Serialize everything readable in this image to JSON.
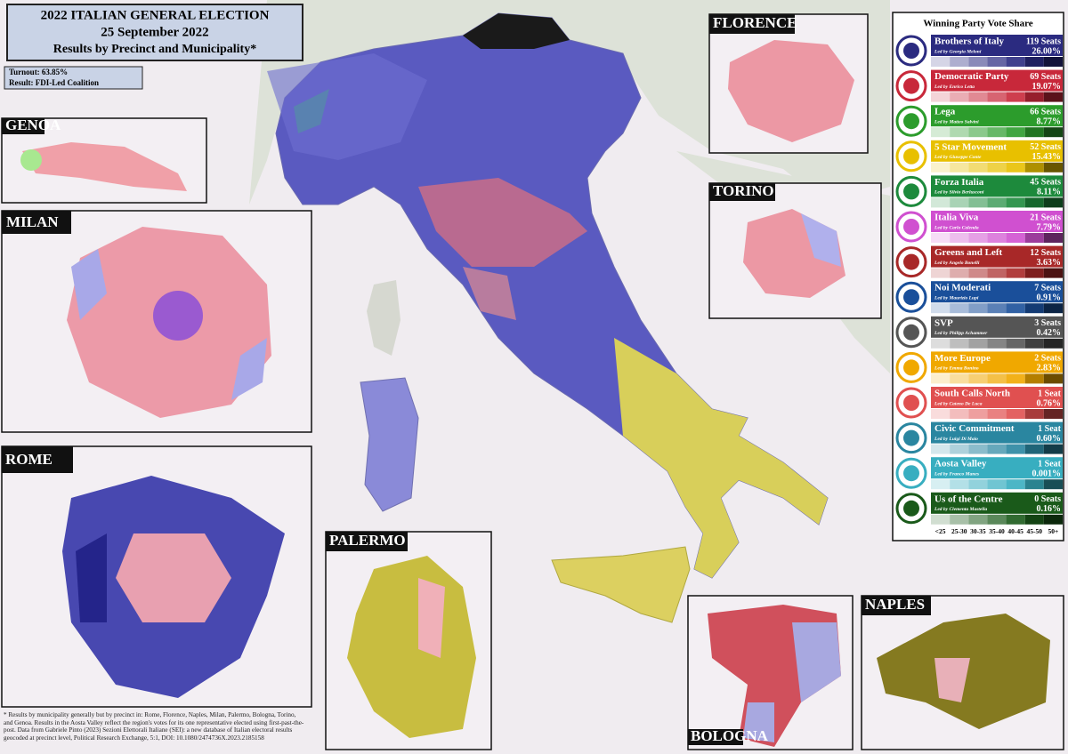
{
  "header": {
    "title": "2022 ITALIAN GENERAL ELECTION",
    "date": "25 September 2022",
    "subtitle": "Results by Precinct and Municipality*"
  },
  "summary": {
    "turnout": "Turnout: 63.85%",
    "result": "Result: FDI-Led Coalition"
  },
  "insets": {
    "genoa": "GENOA",
    "milan": "MILAN",
    "rome": "ROME",
    "palermo": "PALERMO",
    "florence": "FLORENCE",
    "torino": "TORINO",
    "bologna": "BOLOGNA",
    "naples": "NAPLES"
  },
  "legend": {
    "title": "Winning Party Vote Share",
    "parties": [
      {
        "name": "Brothers of Italy",
        "seats": "119 Seats",
        "leader": "Led by Georgia Meloni",
        "share": "26.00%",
        "color": "#2b2b80"
      },
      {
        "name": "Democratic Party",
        "seats": "69 Seats",
        "leader": "Led by Enrico Letta",
        "share": "19.07%",
        "color": "#c8283a"
      },
      {
        "name": "Lega",
        "seats": "66 Seats",
        "leader": "Led by Matteo Salvini",
        "share": "8.77%",
        "color": "#2c9c2c"
      },
      {
        "name": "5 Star Movement",
        "seats": "52 Seats",
        "leader": "Led by Giuseppe Conte",
        "share": "15.43%",
        "color": "#e8c000"
      },
      {
        "name": "Forza Italia",
        "seats": "45 Seats",
        "leader": "Led by Silvio Berlusconi",
        "share": "8.11%",
        "color": "#1d8a3c"
      },
      {
        "name": "Italia Viva",
        "seats": "21 Seats",
        "leader": "Led by Carlo Calenda",
        "share": "7.79%",
        "color": "#d050d0"
      },
      {
        "name": "Greens and Left",
        "seats": "12 Seats",
        "leader": "Led by Angelo Bonelli",
        "share": "3.63%",
        "color": "#a82828"
      },
      {
        "name": "Noi Moderati",
        "seats": "7 Seats",
        "leader": "Led by Maurizio Lupi",
        "share": "0.91%",
        "color": "#1a4f9a"
      },
      {
        "name": "SVP",
        "seats": "3 Seats",
        "leader": "Led by Philipp Achammer",
        "share": "0.42%",
        "color": "#555555"
      },
      {
        "name": "More Europe",
        "seats": "2 Seats",
        "leader": "Led by Emma Bonino",
        "share": "2.83%",
        "color": "#f0a800"
      },
      {
        "name": "South Calls North",
        "seats": "1 Seat",
        "leader": "Led by Cateno De Luca",
        "share": "0.76%",
        "color": "#e05050"
      },
      {
        "name": "Civic Commitment",
        "seats": "1 Seat",
        "leader": "Led by Luigi Di Maio",
        "share": "0.60%",
        "color": "#2a86a0"
      },
      {
        "name": "Aosta Valley",
        "seats": "1 Seat",
        "leader": "Led by Franco Manes",
        "share": "0.001%",
        "color": "#38aec0"
      },
      {
        "name": "Us of the Centre",
        "seats": "0 Seats",
        "leader": "Led by Clementa Mastella",
        "share": "0.16%",
        "color": "#1a5a1a"
      }
    ],
    "scale": [
      "<25",
      "25-30",
      "30-35",
      "35-40",
      "40-45",
      "45-50",
      "50+"
    ]
  },
  "footnote": "* Results by municipality generally but by precinct in: Rome, Florence, Naples, Milan, Palermo, Bologna, Torino, and Genoa. Results in the Aosta Valley reflect the region's votes for its one representative elected using first-past-the-post. Data from Gabriele Pinto (2023) Sezioni Elettorali Italiane (SEI): a new database of Italian electoral results geocoded at precinct level, Political Research Exchange, 5:1, DOI: 10.1080/2474736X.2023.2185158"
}
